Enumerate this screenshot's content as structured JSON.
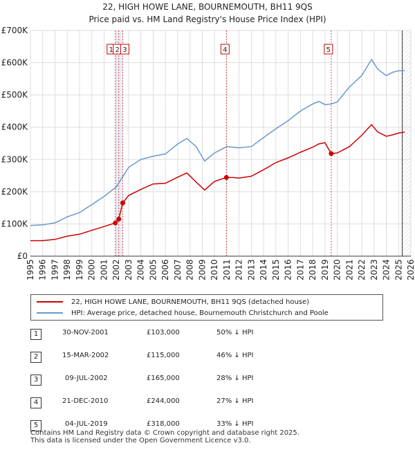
{
  "chart_data": {
    "type": "line",
    "title": "22, HIGH HOWE LANE, BOURNEMOUTH, BH11 9QS",
    "subtitle": "Price paid vs. HM Land Registry's House Price Index (HPI)",
    "xlim": [
      1995,
      2026
    ],
    "ylim": [
      0,
      700000
    ],
    "xticks": [
      "1995",
      "1996",
      "1997",
      "1998",
      "1999",
      "2000",
      "2001",
      "2002",
      "2003",
      "2004",
      "2005",
      "2006",
      "2007",
      "2008",
      "2009",
      "2010",
      "2011",
      "2012",
      "2013",
      "2014",
      "2015",
      "2016",
      "2017",
      "2018",
      "2019",
      "2020",
      "2021",
      "2022",
      "2023",
      "2024",
      "2025",
      "2026"
    ],
    "yticks": [
      {
        "value": 0,
        "label": "£0"
      },
      {
        "value": 100000,
        "label": "£100K"
      },
      {
        "value": 200000,
        "label": "£200K"
      },
      {
        "value": 300000,
        "label": "£300K"
      },
      {
        "value": 400000,
        "label": "£400K"
      },
      {
        "value": 500000,
        "label": "£500K"
      },
      {
        "value": 600000,
        "label": "£600K"
      },
      {
        "value": 700000,
        "label": "£700K"
      }
    ],
    "projection_start": 2025.3,
    "series": [
      {
        "name": "22, HIGH HOWE LANE, BOURNEMOUTH, BH11 9QS (detached house)",
        "color": "#cc0000",
        "x": [
          1995,
          1996,
          1997,
          1998,
          1999,
          2000,
          2001,
          2001.92,
          2002.2,
          2002.52,
          2003,
          2004,
          2005,
          2006,
          2007,
          2007.75,
          2008.5,
          2009.2,
          2010,
          2010.97,
          2011.5,
          2012,
          2013,
          2014,
          2015,
          2016,
          2017,
          2018,
          2018.5,
          2019,
          2019.51,
          2020,
          2021,
          2022,
          2022.8,
          2023.3,
          2024,
          2024.5,
          2025,
          2025.5
        ],
        "y": [
          48000,
          48000,
          52000,
          62000,
          68000,
          80000,
          92000,
          103000,
          115000,
          165000,
          188000,
          207000,
          224000,
          226000,
          245000,
          258000,
          230000,
          205000,
          232000,
          244000,
          244000,
          242000,
          248000,
          268000,
          290000,
          305000,
          322000,
          338000,
          348000,
          352000,
          318000,
          320000,
          340000,
          375000,
          408000,
          385000,
          372000,
          376000,
          382000,
          385000
        ]
      },
      {
        "name": "HPI: Average price, detached house, Bournemouth Christchurch and Poole",
        "color": "#6699cc",
        "x": [
          1995,
          1996,
          1997,
          1998,
          1999,
          2000,
          2001,
          2002,
          2003,
          2004,
          2005,
          2006,
          2007,
          2007.75,
          2008.5,
          2009.2,
          2010,
          2011,
          2012,
          2013,
          2014,
          2015,
          2016,
          2017,
          2018,
          2018.5,
          2019,
          2019.5,
          2020,
          2021,
          2022,
          2022.8,
          2023.3,
          2024,
          2024.5,
          2025,
          2025.5
        ],
        "y": [
          95000,
          97000,
          103000,
          122000,
          135000,
          160000,
          185000,
          215000,
          275000,
          300000,
          310000,
          317000,
          348000,
          365000,
          340000,
          295000,
          320000,
          340000,
          336000,
          340000,
          368000,
          395000,
          420000,
          450000,
          472000,
          480000,
          470000,
          472000,
          478000,
          525000,
          560000,
          610000,
          580000,
          560000,
          570000,
          575000,
          575000
        ]
      }
    ],
    "sales": [
      {
        "num": "1",
        "x": 2001.92,
        "y": 103000
      },
      {
        "num": "2",
        "x": 2002.2,
        "y": 115000
      },
      {
        "num": "3",
        "x": 2002.52,
        "y": 165000
      },
      {
        "num": "4",
        "x": 2010.97,
        "y": 244000
      },
      {
        "num": "5",
        "x": 2019.51,
        "y": 318000
      }
    ]
  },
  "legend": {
    "property": "22, HIGH HOWE LANE, BOURNEMOUTH, BH11 9QS (detached house)",
    "hpi": "HPI: Average price, detached house, Bournemouth Christchurch and Poole"
  },
  "sales_table": [
    {
      "num": "1",
      "date": "30-NOV-2001",
      "price": "£103,000",
      "delta": "50% ↓ HPI"
    },
    {
      "num": "2",
      "date": "15-MAR-2002",
      "price": "£115,000",
      "delta": "46% ↓ HPI"
    },
    {
      "num": "3",
      "date": "09-JUL-2002",
      "price": "£165,000",
      "delta": "28% ↓ HPI"
    },
    {
      "num": "4",
      "date": "21-DEC-2010",
      "price": "£244,000",
      "delta": "27% ↓ HPI"
    },
    {
      "num": "5",
      "date": "04-JUL-2019",
      "price": "£318,000",
      "delta": "33% ↓ HPI"
    }
  ],
  "footer": {
    "line1": "Contains HM Land Registry data © Crown copyright and database right 2025.",
    "line2": "This data is licensed under the Open Government Licence v3.0."
  },
  "colors": {
    "property": "#cc0000",
    "hpi": "#6699cc",
    "band": "#e8eef8",
    "grid": "#dddddd"
  }
}
